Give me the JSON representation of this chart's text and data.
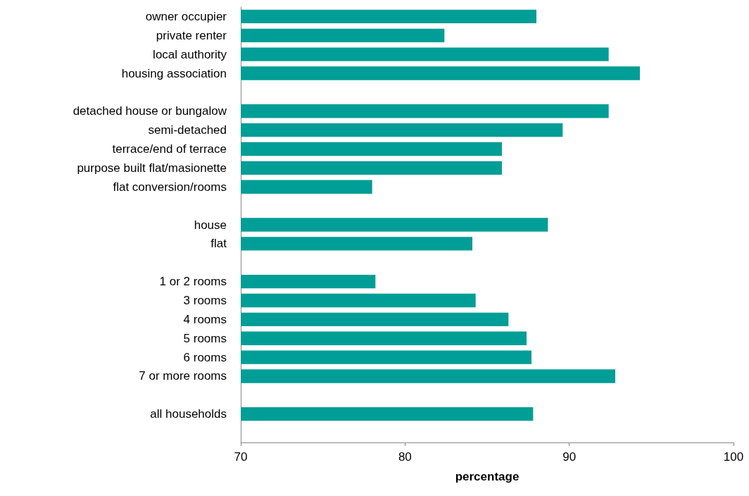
{
  "chart_data": {
    "type": "bar",
    "orientation": "horizontal",
    "xlabel": "percentage",
    "categories": [
      "owner occupier",
      "private renter",
      "local authority",
      "housing association",
      null,
      "detached house or bungalow",
      "semi-detached",
      "terrace/end of terrace",
      "purpose built flat/masionette",
      "flat conversion/rooms",
      null,
      "house",
      "flat",
      null,
      "1 or 2 rooms",
      "3 rooms",
      "4 rooms",
      "5 rooms",
      "6 rooms",
      "7 or more rooms",
      null,
      "all households",
      null
    ],
    "values": [
      88.0,
      82.4,
      92.4,
      94.3,
      null,
      92.4,
      89.6,
      85.9,
      85.9,
      78.0,
      null,
      88.7,
      84.1,
      null,
      78.2,
      84.3,
      86.3,
      87.4,
      87.7,
      92.8,
      null,
      87.8,
      null
    ],
    "color": "#009e96",
    "xlim": [
      70,
      100
    ],
    "xticks": [
      70,
      80,
      90,
      100
    ]
  }
}
